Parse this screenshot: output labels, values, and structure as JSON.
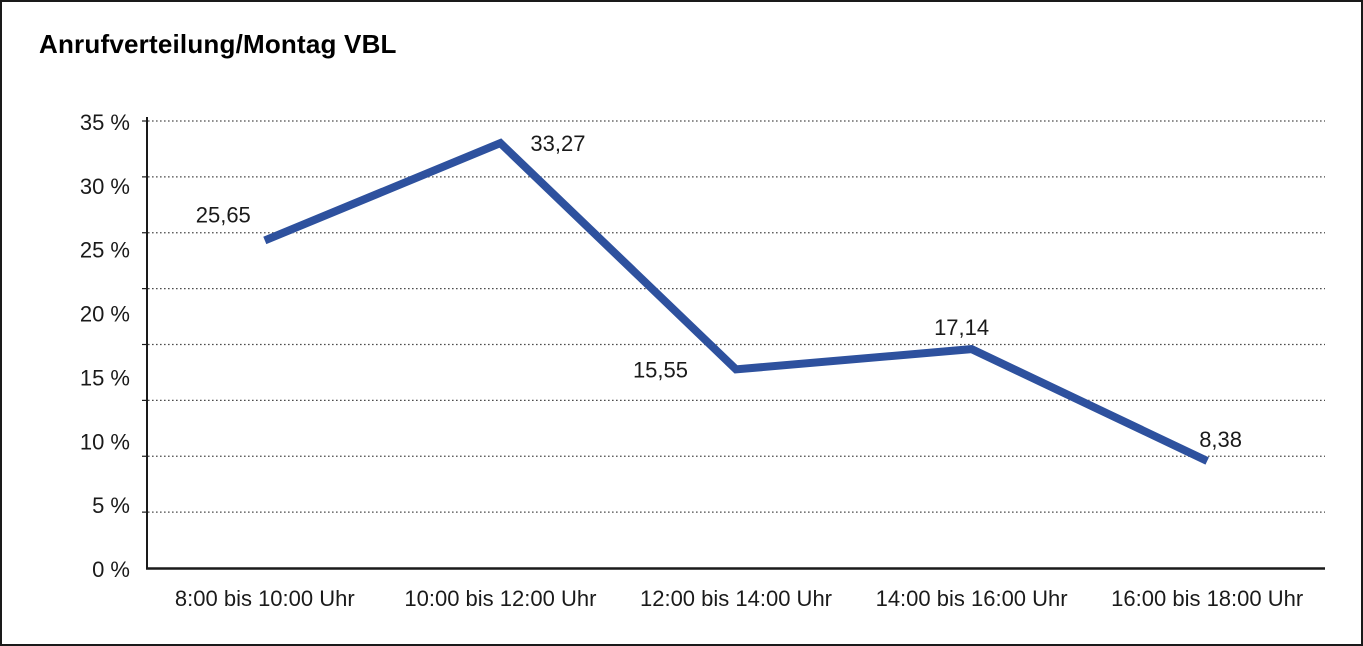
{
  "window": {
    "background": "#ffffff",
    "border_color": "#1a1a1a"
  },
  "chart_data": {
    "type": "line",
    "title": "Anrufverteilung/Montag VBL",
    "categories": [
      "8:00 bis 10:00 Uhr",
      "10:00 bis 12:00 Uhr",
      "12:00 bis 14:00 Uhr",
      "14:00 bis 16:00 Uhr",
      "16:00 bis 18:00 Uhr"
    ],
    "values": [
      25.65,
      33.27,
      15.55,
      17.14,
      8.38
    ],
    "value_labels": [
      "25,65",
      "33,27",
      "15,55",
      "17,14",
      "8,38"
    ],
    "y_tick_labels": [
      "35 %",
      "30 %",
      "25 %",
      "20 %",
      "15 %",
      "10 %",
      "5 %",
      "0 %"
    ],
    "ylim": [
      0,
      35
    ],
    "xlabel": "",
    "ylabel": "",
    "legend": "none",
    "grid": "horizontal-dotted",
    "grid_divisions": 8,
    "line_color": "#2E519E",
    "axis_color": "#1a1a1a",
    "gridline_color": "#4d4d4d",
    "text_color": "#1a1a1a"
  }
}
